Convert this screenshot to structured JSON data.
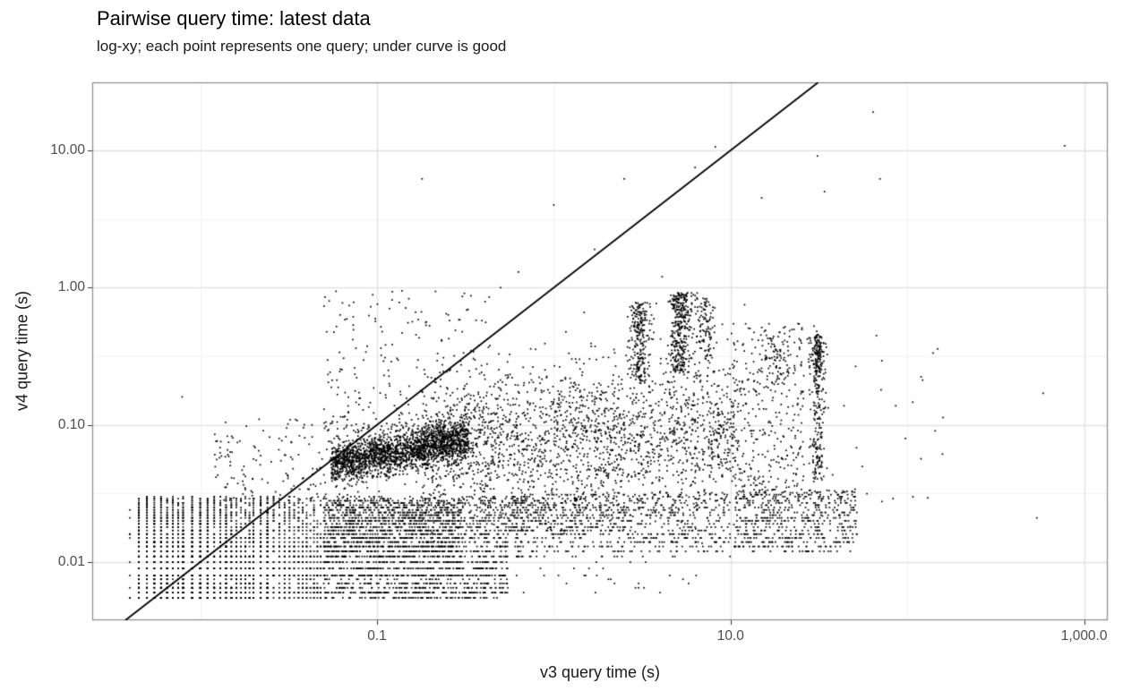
{
  "chart_data": {
    "type": "scatter",
    "title": "Pairwise query time: latest data",
    "subtitle": "log-xy; each point represents one query; under curve is good",
    "xlabel": "v3 query time (s)",
    "ylabel": "v4 query time (s)",
    "x_scale": "log10",
    "y_scale": "log10",
    "x_domain": [
      0.00245,
      1360
    ],
    "y_domain": [
      0.00377,
      31.3
    ],
    "x_ticks": [
      {
        "value": 0.1,
        "label": "0.1"
      },
      {
        "value": 10,
        "label": "10.0"
      },
      {
        "value": 1000,
        "label": "1,000.0"
      }
    ],
    "x_minor": [
      0.01,
      1,
      100
    ],
    "y_ticks": [
      {
        "value": 0.01,
        "label": "0.01"
      },
      {
        "value": 0.1,
        "label": "0.10"
      },
      {
        "value": 1,
        "label": "1.00"
      },
      {
        "value": 10,
        "label": "10.00"
      }
    ],
    "y_minor": [
      0.0316,
      0.316,
      3.16
    ],
    "grid": {
      "major": "#e3e3e3",
      "minor": "#f2f2f2",
      "panel_border": "#8c8c8c",
      "tick_color": "#333333",
      "background": "#ffffff"
    },
    "reference_line": {
      "type": "identity",
      "meaning": "y = x; points under the line mean v4 faster than v3",
      "color": "#000000",
      "width": 1.8
    },
    "point": {
      "color": "#000000",
      "size": 1.7
    },
    "n_points_approx": 13000,
    "seed": 42,
    "quantization": {
      "note": "query times are quantized at millisecond resolution, producing the stripe/lattice pattern at low values",
      "x_steps": [
        [
          0.008,
          0.0005
        ],
        [
          0.02,
          0.001
        ],
        [
          0.05,
          0.002
        ]
      ],
      "y_steps": [
        [
          0.0075,
          0.0005
        ],
        [
          0.032,
          0.001
        ]
      ]
    },
    "clusters": [
      {
        "name": "grid-block-bottom-left",
        "n": 2400,
        "x": {
          "d": "lu",
          "lo": 0.0042,
          "hi": 0.025
        },
        "y": {
          "d": "lu",
          "lo": 0.0053,
          "hi": 0.03,
          "bias": 1.35
        },
        "qx": true,
        "qy": true
      },
      {
        "name": "stripe-field",
        "n": 2300,
        "x": {
          "d": "lu",
          "lo": 0.024,
          "hi": 0.55
        },
        "y": {
          "d": "lu",
          "lo": 0.0055,
          "hi": 0.03,
          "bias": 1.15
        },
        "qx": true,
        "qy": true
      },
      {
        "name": "stripe-core",
        "n": 750,
        "x": {
          "d": "lu",
          "lo": 0.05,
          "hi": 0.3
        },
        "y": {
          "d": "lu",
          "lo": 0.011,
          "hi": 0.028
        },
        "qy": true
      },
      {
        "name": "dense-ridge",
        "n": 2100,
        "x": {
          "d": "lu",
          "lo": 0.055,
          "hi": 0.33
        },
        "y": {
          "d": "tr",
          "a": -0.978,
          "b": 0.244,
          "s": 0.075
        }
      },
      {
        "name": "mid-cloud",
        "n": 2150,
        "x": {
          "d": "lu",
          "lo": 0.18,
          "hi": 11,
          "bias": 1.05
        },
        "y": {
          "d": "tr",
          "a": -1.1,
          "b": 0.08,
          "s": 0.28,
          "clip": [
            0.013,
            0.7
          ]
        }
      },
      {
        "name": "left-sparse",
        "n": 170,
        "x": {
          "d": "lu",
          "lo": 0.012,
          "hi": 0.09
        },
        "y": {
          "d": "lu",
          "lo": 0.028,
          "hi": 0.11,
          "bias": 1.25
        }
      },
      {
        "name": "above-line-sparse",
        "n": 220,
        "x": {
          "d": "lu",
          "lo": 0.05,
          "hi": 0.45
        },
        "y": {
          "d": "lu",
          "lo": 0.09,
          "hi": 0.95,
          "bias": 1.5
        }
      },
      {
        "name": "vertical-cluster-x3",
        "n": 240,
        "x": {
          "d": "ln",
          "mu": 0.484,
          "s": 0.03
        },
        "y": {
          "d": "lu",
          "lo": 0.2,
          "hi": 0.78,
          "bias": 0.85
        }
      },
      {
        "name": "vertical-cluster-x5-mid",
        "n": 200,
        "x": {
          "d": "ln",
          "mu": 0.712,
          "s": 0.028
        },
        "y": {
          "d": "lu",
          "lo": 0.24,
          "hi": 0.58
        }
      },
      {
        "name": "vertical-cluster-x5-top",
        "n": 150,
        "x": {
          "d": "ln",
          "mu": 0.718,
          "s": 0.03
        },
        "y": {
          "d": "lu",
          "lo": 0.6,
          "hi": 0.92
        }
      },
      {
        "name": "vertical-cluster-x7",
        "n": 110,
        "x": {
          "d": "ln",
          "mu": 0.85,
          "s": 0.035
        },
        "y": {
          "d": "lu",
          "lo": 0.3,
          "hi": 0.85
        }
      },
      {
        "name": "band-x10-25",
        "n": 320,
        "x": {
          "d": "lu",
          "lo": 10,
          "hi": 26
        },
        "y": {
          "d": "lu",
          "lo": 0.035,
          "hi": 0.55,
          "bias": 1.2
        }
      },
      {
        "name": "clump-x18",
        "n": 60,
        "x": {
          "d": "ln",
          "mu": 1.26,
          "s": 0.04
        },
        "y": {
          "d": "ln",
          "mu": -0.495,
          "s": 0.1
        }
      },
      {
        "name": "strip-x30",
        "n": 250,
        "x": {
          "d": "ln",
          "mu": 1.49,
          "s": 0.022
        },
        "y": {
          "d": "lu",
          "lo": 0.038,
          "hi": 0.46,
          "bias": 0.95
        }
      },
      {
        "name": "clump-x30-top",
        "n": 70,
        "x": {
          "d": "ln",
          "mu": 1.495,
          "s": 0.02
        },
        "y": {
          "d": "ln",
          "mu": -0.45,
          "s": 0.09
        }
      },
      {
        "name": "right-sparse",
        "n": 26,
        "x": {
          "d": "lu",
          "lo": 33,
          "hi": 180
        },
        "y": {
          "d": "lu",
          "lo": 0.015,
          "hi": 0.45
        }
      },
      {
        "name": "stripe-tail-1",
        "n": 480,
        "x": {
          "d": "lu",
          "lo": 0.55,
          "hi": 2.6
        },
        "y": {
          "d": "lu",
          "lo": 0.016,
          "hi": 0.032
        },
        "qy": true
      },
      {
        "name": "stripe-tail-2",
        "n": 270,
        "x": {
          "d": "lu",
          "lo": 2.6,
          "hi": 10
        },
        "y": {
          "d": "lu",
          "lo": 0.014,
          "hi": 0.032
        },
        "qy": true
      },
      {
        "name": "stripe-tail-low",
        "n": 170,
        "x": {
          "d": "lu",
          "lo": 0.6,
          "hi": 10,
          "bias": 1.3
        },
        "y": {
          "d": "lu",
          "lo": 0.011,
          "hi": 0.016
        },
        "qy": true
      },
      {
        "name": "stripe-right-block",
        "n": 600,
        "x": {
          "d": "lu",
          "lo": 10.5,
          "hi": 52
        },
        "y": {
          "d": "lu",
          "lo": 0.012,
          "hi": 0.034
        },
        "qy": true
      },
      {
        "name": "rare-low-mid",
        "n": 28,
        "x": {
          "d": "lu",
          "lo": 0.55,
          "hi": 6.5
        },
        "y": {
          "d": "lu",
          "lo": 0.006,
          "hi": 0.01
        },
        "qy": true
      }
    ],
    "outliers": [
      [
        0.18,
        6.2
      ],
      [
        1.0,
        4.0
      ],
      [
        2.5,
        6.2
      ],
      [
        1.7,
        1.9
      ],
      [
        0.63,
        1.3
      ],
      [
        0.5,
        1.0
      ],
      [
        4.1,
        1.2
      ],
      [
        6.3,
        7.5
      ],
      [
        8.2,
        10.6
      ],
      [
        12,
        0.75
      ],
      [
        15,
        4.5
      ],
      [
        31,
        9.1
      ],
      [
        34,
        5.0
      ],
      [
        64,
        19
      ],
      [
        70,
        6.2
      ],
      [
        775,
        10.8
      ],
      [
        586,
        0.17
      ],
      [
        71,
        0.18
      ],
      [
        540,
        0.021
      ],
      [
        0.0079,
        0.16
      ]
    ]
  }
}
